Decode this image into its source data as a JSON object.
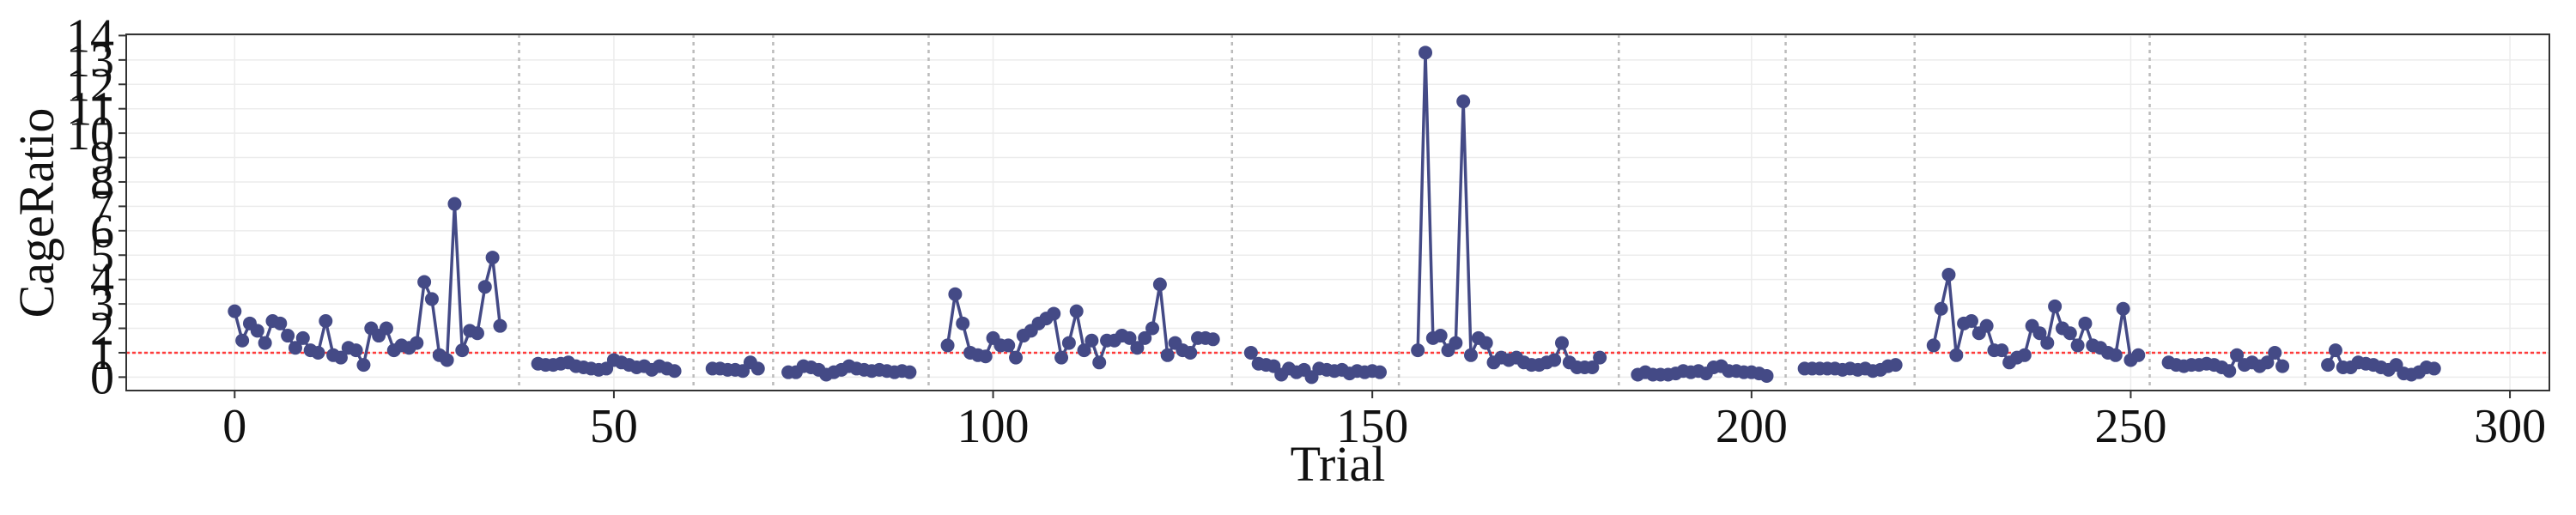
{
  "chart_data": {
    "type": "line",
    "xlabel": "Trial",
    "ylabel": "CageRatio",
    "xlim": [
      -14.3,
      305.2
    ],
    "ylim": [
      -0.55,
      14.05
    ],
    "xticks": [
      0,
      50,
      100,
      150,
      200,
      250,
      300
    ],
    "yticks": [
      0,
      1,
      2,
      3,
      4,
      5,
      6,
      7,
      8,
      9,
      10,
      11,
      12,
      13,
      14
    ],
    "grid": true,
    "hline": 1,
    "hline_color": "#ff3b3b",
    "vlines": [
      37.5,
      60.5,
      71,
      91.5,
      131.5,
      153.5,
      182.5,
      204.5,
      221.5,
      252.5,
      273
    ],
    "x": [
      0,
      1,
      2,
      3,
      4,
      5,
      6,
      7,
      8,
      9,
      10,
      11,
      12,
      13,
      14,
      15,
      16,
      17,
      18,
      19,
      20,
      21,
      22,
      23,
      24,
      25,
      26,
      27,
      28,
      29,
      30,
      31,
      32,
      33,
      34,
      35,
      36,
      37,
      38,
      39,
      40,
      41,
      42,
      43,
      44,
      45,
      46,
      47,
      48,
      49,
      50,
      51,
      52,
      53,
      54,
      55,
      56,
      57,
      58,
      59,
      60,
      61,
      62,
      63,
      64,
      65,
      66,
      67,
      68,
      69,
      70,
      71,
      72,
      73,
      74,
      75,
      76,
      77,
      78,
      79,
      80,
      81,
      82,
      83,
      84,
      85,
      86,
      87,
      88,
      89,
      90,
      91,
      92,
      93,
      94,
      95,
      96,
      97,
      98,
      99,
      100,
      101,
      102,
      103,
      104,
      105,
      106,
      107,
      108,
      109,
      110,
      111,
      112,
      113,
      114,
      115,
      116,
      117,
      118,
      119,
      120,
      121,
      122,
      123,
      124,
      125,
      126,
      127,
      128,
      129,
      130,
      131,
      132,
      133,
      134,
      135,
      136,
      137,
      138,
      139,
      140,
      141,
      142,
      143,
      144,
      145,
      146,
      147,
      148,
      149,
      150,
      151,
      152,
      153,
      154,
      155,
      156,
      157,
      158,
      159,
      160,
      161,
      162,
      163,
      164,
      165,
      166,
      167,
      168,
      169,
      170,
      171,
      172,
      173,
      174,
      175,
      176,
      177,
      178,
      179,
      180,
      181,
      182,
      183,
      184,
      185,
      186,
      187,
      188,
      189,
      190,
      191,
      192,
      193,
      194,
      195,
      196,
      197,
      198,
      199,
      200,
      201,
      202,
      203,
      204,
      205,
      206,
      207,
      208,
      209,
      210,
      211,
      212,
      213,
      214,
      215,
      216,
      217,
      218,
      219,
      220,
      221,
      222,
      223,
      224,
      225,
      226,
      227,
      228,
      229,
      230,
      231,
      232,
      233,
      234,
      235,
      236,
      237,
      238,
      239,
      240,
      241,
      242,
      243,
      244,
      245,
      246,
      247,
      248,
      249,
      250,
      251,
      252,
      253,
      254,
      255,
      256,
      257,
      258,
      259,
      260,
      261,
      262,
      263,
      264,
      265,
      266,
      267,
      268,
      269,
      270,
      271,
      272,
      273,
      274,
      275,
      276,
      277,
      278,
      279,
      280,
      281,
      282,
      283,
      284,
      285,
      286,
      287,
      288,
      289,
      290
    ],
    "series": [
      {
        "color": "#444a86",
        "values": [
          2.7,
          1.5,
          2.2,
          1.9,
          1.4,
          2.3,
          2.2,
          1.7,
          1.2,
          1.6,
          1.1,
          1.0,
          2.3,
          0.9,
          0.8,
          1.2,
          1.1,
          0.5,
          2.0,
          1.7,
          2.0,
          1.1,
          1.3,
          1.2,
          1.4,
          3.9,
          3.2,
          0.9,
          0.7,
          7.1,
          1.1,
          1.9,
          1.8,
          3.7,
          4.9,
          2.1,
          null,
          null,
          null,
          null,
          0.55,
          0.5,
          0.5,
          0.55,
          0.6,
          0.45,
          0.4,
          0.35,
          0.3,
          0.35,
          0.7,
          0.6,
          0.5,
          0.4,
          0.45,
          0.3,
          0.45,
          0.35,
          0.25,
          null,
          null,
          null,
          null,
          0.35,
          0.35,
          0.3,
          0.3,
          0.25,
          0.6,
          0.35,
          null,
          null,
          null,
          0.2,
          0.2,
          0.45,
          0.4,
          0.3,
          0.1,
          0.2,
          0.3,
          0.45,
          0.35,
          0.3,
          0.25,
          0.3,
          0.25,
          0.2,
          0.25,
          0.2,
          null,
          null,
          null,
          null,
          1.3,
          3.4,
          2.2,
          1.0,
          0.9,
          0.85,
          1.6,
          1.3,
          1.3,
          0.8,
          1.7,
          1.9,
          2.2,
          2.4,
          2.6,
          0.8,
          1.4,
          2.7,
          1.1,
          1.5,
          0.6,
          1.5,
          1.5,
          1.7,
          1.6,
          1.2,
          1.6,
          2.0,
          3.8,
          0.9,
          1.4,
          1.1,
          1.0,
          1.6,
          1.6,
          1.55,
          null,
          null,
          null,
          null,
          1.0,
          0.55,
          0.5,
          0.45,
          0.1,
          0.35,
          0.2,
          0.3,
          0.0,
          0.35,
          0.3,
          0.25,
          0.3,
          0.15,
          0.25,
          0.2,
          0.25,
          0.2,
          null,
          null,
          null,
          null,
          1.1,
          13.3,
          1.6,
          1.7,
          1.1,
          1.4,
          11.3,
          0.9,
          1.6,
          1.4,
          0.6,
          0.8,
          0.7,
          0.8,
          0.6,
          0.5,
          0.5,
          0.6,
          0.7,
          1.4,
          0.6,
          0.4,
          0.4,
          0.4,
          0.8,
          null,
          null,
          null,
          null,
          0.1,
          0.2,
          0.1,
          0.1,
          0.1,
          0.15,
          0.25,
          0.2,
          0.25,
          0.15,
          0.4,
          0.45,
          0.25,
          0.25,
          0.2,
          0.2,
          0.15,
          0.05,
          null,
          null,
          null,
          null,
          0.35,
          0.35,
          0.35,
          0.35,
          0.35,
          0.3,
          0.35,
          0.3,
          0.35,
          0.25,
          0.3,
          0.45,
          0.5,
          null,
          null,
          null,
          null,
          1.3,
          2.8,
          4.2,
          0.9,
          2.2,
          2.3,
          1.8,
          2.1,
          1.1,
          1.1,
          0.6,
          0.8,
          0.9,
          2.1,
          1.8,
          1.4,
          2.9,
          2.0,
          1.8,
          1.3,
          2.2,
          1.3,
          1.2,
          1.0,
          0.9,
          2.8,
          0.7,
          0.9,
          null,
          null,
          null,
          0.6,
          0.5,
          0.45,
          0.5,
          0.5,
          0.55,
          0.5,
          0.4,
          0.25,
          0.9,
          0.5,
          0.6,
          0.45,
          0.6,
          1.0,
          0.45,
          null,
          null,
          null,
          null,
          null,
          0.5,
          1.1,
          0.4,
          0.4,
          0.6,
          0.55,
          0.5,
          0.4,
          0.3,
          0.5,
          0.15,
          0.1,
          0.2,
          0.4,
          0.35
        ]
      }
    ]
  }
}
